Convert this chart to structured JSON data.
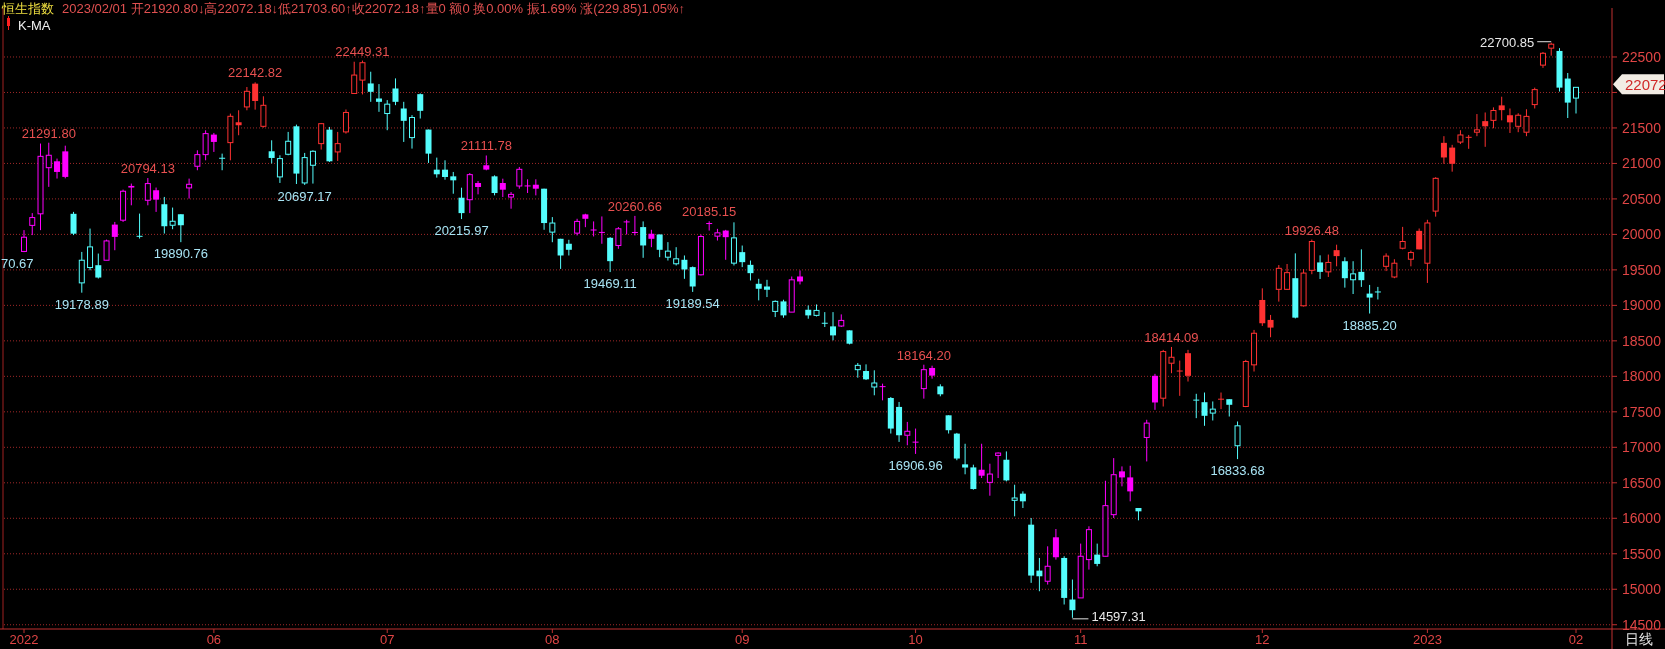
{
  "chart_data": {
    "type": "candlestick",
    "title": "恒生指数",
    "subtitle": "2023/02/01 开21920.80↓高22072.18↓低21703.60↑收22072.18↑量0 额0 换0.00% 振1.69% 涨(229.85)1.05%↑",
    "categories": [
      "2022",
      null,
      null,
      null,
      null,
      null,
      null,
      null,
      null,
      null,
      null,
      null,
      null,
      null,
      null,
      null,
      null,
      null,
      null,
      null,
      null,
      null,
      null,
      "06",
      null,
      null,
      null,
      null,
      null,
      null,
      null,
      null,
      null,
      null,
      null,
      null,
      null,
      null,
      null,
      null,
      null,
      null,
      null,
      null,
      "07",
      null,
      null,
      null,
      null,
      null,
      null,
      null,
      null,
      null,
      null,
      null,
      null,
      null,
      null,
      null,
      null,
      null,
      null,
      null,
      "08",
      null,
      null,
      null,
      null,
      null,
      null,
      null,
      null,
      null,
      null,
      null,
      null,
      null,
      null,
      null,
      null,
      null,
      null,
      null,
      null,
      null,
      null,
      "09",
      null,
      null,
      null,
      null,
      null,
      null,
      null,
      null,
      null,
      null,
      null,
      null,
      null,
      null,
      null,
      null,
      null,
      null,
      null,
      null,
      "10",
      null,
      null,
      null,
      null,
      null,
      null,
      null,
      null,
      null,
      null,
      null,
      null,
      null,
      null,
      null,
      null,
      null,
      null,
      null,
      "11",
      null,
      null,
      null,
      null,
      null,
      null,
      null,
      null,
      null,
      null,
      null,
      null,
      null,
      null,
      null,
      null,
      null,
      null,
      null,
      null,
      null,
      "12",
      null,
      null,
      null,
      null,
      null,
      null,
      null,
      null,
      null,
      null,
      null,
      null,
      null,
      null,
      null,
      null,
      null,
      null,
      null,
      "2023",
      null,
      null,
      null,
      null,
      null,
      null,
      null,
      null,
      null,
      null,
      null,
      null,
      null,
      null,
      null,
      null,
      null,
      "02"
    ],
    "ohlc": [
      [
        19760,
        20060,
        19750,
        19960
      ],
      [
        20127,
        20300,
        19990,
        20237
      ],
      [
        20290,
        21280,
        20060,
        21100
      ],
      [
        20940,
        21291.8,
        20670,
        21115
      ],
      [
        21030,
        21068,
        20787,
        20880
      ],
      [
        21170,
        21250,
        20790,
        20810
      ],
      [
        20290,
        20317,
        19990,
        20010
      ],
      [
        19317,
        19753,
        19178.89,
        19636
      ],
      [
        19533,
        20082,
        19495,
        19824
      ],
      [
        19566,
        19730,
        19378,
        19392
      ],
      [
        19636,
        19927,
        19636,
        19908
      ],
      [
        20138,
        20176,
        19777,
        19965
      ],
      [
        20200,
        20631,
        20176,
        20608
      ],
      [
        20683,
        20716,
        20410,
        20660
      ],
      [
        19980,
        20293,
        19941,
        19975
      ],
      [
        20481,
        20794.13,
        20410,
        20716
      ],
      [
        20622,
        20660,
        20317,
        20490
      ],
      [
        20425,
        20528,
        20012,
        20115
      ],
      [
        20129,
        20378,
        20073,
        20185
      ],
      [
        20284,
        20284,
        19890.76,
        20129
      ],
      [
        20655,
        20786,
        20505,
        20706
      ],
      [
        20960,
        21185,
        20904,
        21124
      ],
      [
        21124,
        21467,
        21044,
        21420
      ],
      [
        21406,
        21430,
        21162,
        21303
      ],
      [
        21080,
        21138,
        20904,
        21077
      ],
      [
        21293,
        21702,
        21044,
        21664
      ],
      [
        21580,
        21749,
        21397,
        21538
      ],
      [
        21796,
        22077,
        21749,
        22016
      ],
      [
        22124,
        22142.82,
        21758,
        21880
      ],
      [
        21523,
        21946,
        21505,
        21819
      ],
      [
        21171,
        21326,
        21000,
        21077
      ],
      [
        20810,
        21115,
        20725,
        21068
      ],
      [
        21129,
        21444,
        21115,
        21312
      ],
      [
        21523,
        21547,
        20710,
        20857
      ],
      [
        20725,
        21148,
        20697.17,
        21082
      ],
      [
        20974,
        21185,
        20716,
        21171
      ],
      [
        21279,
        21570,
        21195,
        21560
      ],
      [
        21476,
        21514,
        21021,
        21030
      ],
      [
        21162,
        21444,
        21035,
        21279
      ],
      [
        21444,
        21760,
        21420,
        21718
      ],
      [
        21986,
        22433,
        21986,
        22245
      ],
      [
        22174,
        22449.31,
        21972,
        22419
      ],
      [
        22127,
        22292,
        21868,
        22009
      ],
      [
        21915,
        22118,
        21727,
        21868
      ],
      [
        21703,
        21892,
        21468,
        21835
      ],
      [
        22056,
        22198,
        21821,
        21868
      ],
      [
        21774,
        21868,
        21303,
        21600
      ],
      [
        21364,
        21680,
        21209,
        21647
      ],
      [
        21976,
        21986,
        21633,
        21741
      ],
      [
        21477,
        21477,
        21007,
        21138
      ],
      [
        20912,
        21082,
        20800,
        20847
      ],
      [
        20912,
        21044,
        20771,
        20809
      ],
      [
        20818,
        20880,
        20573,
        20762
      ],
      [
        20517,
        20658,
        20215.97,
        20300
      ],
      [
        20489,
        20865,
        20300,
        20842
      ],
      [
        20724,
        20752,
        20564,
        20668
      ],
      [
        20974,
        21111.78,
        20903,
        20913
      ],
      [
        20818,
        20832,
        20550,
        20583
      ],
      [
        20724,
        20785,
        20526,
        20630
      ],
      [
        20526,
        20597,
        20362,
        20564
      ],
      [
        20682,
        20950,
        20644,
        20917
      ],
      [
        20690,
        20776,
        20583,
        20686
      ],
      [
        20700,
        20776,
        20550,
        20644
      ],
      [
        20644,
        20644,
        20065,
        20160
      ],
      [
        20032,
        20244,
        19890,
        20160
      ],
      [
        19938,
        19938,
        19514,
        19703
      ],
      [
        19868,
        19924,
        19703,
        19783
      ],
      [
        20018,
        20220,
        19985,
        20183
      ],
      [
        20282,
        20291,
        20102,
        20220
      ],
      [
        20069,
        20183,
        19971,
        20065
      ],
      [
        20035,
        20253,
        19868,
        20032
      ],
      [
        19952,
        19962,
        19469.11,
        19623
      ],
      [
        19844,
        20103,
        19797,
        20079
      ],
      [
        20183,
        20206,
        19999,
        20180
      ],
      [
        20034,
        20260.66,
        19985,
        20032
      ],
      [
        20103,
        20183,
        19670,
        19844
      ],
      [
        20009,
        20065,
        19820,
        19938
      ],
      [
        19999,
        19999,
        19679,
        19783
      ],
      [
        19679,
        19891,
        19632,
        19764
      ],
      [
        19586,
        19820,
        19562,
        19656
      ],
      [
        19642,
        19703,
        19374,
        19506
      ],
      [
        19539,
        19548,
        19189.54,
        19266
      ],
      [
        19431,
        19998,
        19421,
        19970
      ],
      [
        20160,
        20185.15,
        20054,
        20155
      ],
      [
        19975,
        20078,
        19914,
        20022
      ],
      [
        20054,
        20064,
        19642,
        19961
      ],
      [
        19595,
        20170,
        19562,
        19951
      ],
      [
        19750,
        19843,
        19539,
        19609
      ],
      [
        19571,
        19632,
        19351,
        19454
      ],
      [
        19304,
        19374,
        19070,
        19234
      ],
      [
        19266,
        19360,
        19117,
        19220
      ],
      [
        18915,
        19070,
        18835,
        19056
      ],
      [
        19056,
        19079,
        18826,
        18859
      ],
      [
        18905,
        19407,
        18905,
        19360
      ],
      [
        19407,
        19492,
        19295,
        19337
      ],
      [
        18938,
        18999,
        18812,
        18859
      ],
      [
        18859,
        19013,
        18844,
        18929
      ],
      [
        18755,
        18905,
        18695,
        18750
      ],
      [
        18704,
        18905,
        18507,
        18577
      ],
      [
        18709,
        18873,
        18695,
        18788
      ],
      [
        18648,
        18648,
        18450,
        18460
      ],
      [
        18094,
        18188,
        17981,
        18155
      ],
      [
        18075,
        18169,
        17948,
        17958
      ],
      [
        17850,
        18085,
        17733,
        17906
      ],
      [
        17862,
        17897,
        17662,
        17859
      ],
      [
        17695,
        17709,
        17194,
        17264
      ],
      [
        17569,
        17639,
        17076,
        17170
      ],
      [
        17170,
        17358,
        17029,
        17226
      ],
      [
        17080,
        17264,
        16906.96,
        17076
      ],
      [
        17827,
        18164.2,
        17686,
        18094
      ],
      [
        18118,
        18150,
        17967,
        18010
      ],
      [
        17859,
        17888,
        17719,
        17747
      ],
      [
        17451,
        17451,
        17194,
        17241
      ],
      [
        17193,
        17203,
        16818,
        16842
      ],
      [
        16760,
        17050,
        16620,
        16715
      ],
      [
        16717,
        16755,
        16403,
        16412
      ],
      [
        16684,
        17050,
        16567,
        16600
      ],
      [
        16506,
        16769,
        16318,
        16623
      ],
      [
        16886,
        16928,
        16567,
        16919
      ],
      [
        16825,
        16942,
        16520,
        16534
      ],
      [
        16253,
        16473,
        16028,
        16286
      ],
      [
        16347,
        16379,
        16145,
        16239
      ],
      [
        15910,
        16004,
        15090,
        15193
      ],
      [
        15263,
        15441,
        14972,
        15183
      ],
      [
        15113,
        15605,
        15066,
        15324
      ],
      [
        15732,
        15849,
        15418,
        15451
      ],
      [
        15441,
        15465,
        14785,
        14878
      ],
      [
        14855,
        15137,
        14597.31,
        14705
      ],
      [
        14878,
        15643,
        14878,
        15465
      ],
      [
        15418,
        15887,
        15277,
        15840
      ],
      [
        15488,
        15643,
        15324,
        15357
      ],
      [
        15465,
        16529,
        15465,
        16178
      ],
      [
        16051,
        16848,
        16004,
        16614
      ],
      [
        16661,
        16731,
        16450,
        16576
      ],
      [
        16576,
        16740,
        16239,
        16379
      ],
      [
        16145,
        16145,
        15971,
        16098
      ],
      [
        17139,
        17388,
        16801,
        17341
      ],
      [
        18007,
        18035,
        17528,
        17632
      ],
      [
        17692,
        18373,
        17575,
        18349
      ],
      [
        18185,
        18414.09,
        18044,
        18269
      ],
      [
        18082,
        18222,
        17725,
        18077
      ],
      [
        18326,
        18373,
        17927,
        18007
      ],
      [
        17672,
        17754,
        17411,
        17669
      ],
      [
        17636,
        17772,
        17303,
        17444
      ],
      [
        17482,
        17646,
        17378,
        17538
      ],
      [
        17685,
        17772,
        17538,
        17683
      ],
      [
        17678,
        17678,
        17434,
        17599
      ],
      [
        17022,
        17364,
        16833.68,
        17303
      ],
      [
        17575,
        18232,
        17566,
        18209
      ],
      [
        18162,
        18654,
        18068,
        18607
      ],
      [
        19076,
        19240,
        18710,
        18748
      ],
      [
        18795,
        18865,
        18551,
        18687
      ],
      [
        19226,
        19568,
        19053,
        19522
      ],
      [
        19226,
        19583,
        19217,
        19461
      ],
      [
        19383,
        19733,
        18816,
        18827
      ],
      [
        18994,
        19511,
        18983,
        19455
      ],
      [
        19494,
        19926.48,
        19439,
        19900
      ],
      [
        19605,
        19705,
        19372,
        19472
      ],
      [
        19472,
        19716,
        19400,
        19605
      ],
      [
        19778,
        19855,
        19550,
        19694
      ],
      [
        19622,
        19677,
        19250,
        19383
      ],
      [
        19361,
        19622,
        19160,
        19444
      ],
      [
        19472,
        19789,
        19260,
        19355
      ],
      [
        19166,
        19288,
        18885.2,
        19110
      ],
      [
        19196,
        19260,
        19083,
        19193
      ],
      [
        19550,
        19733,
        19483,
        19694
      ],
      [
        19400,
        19650,
        19383,
        19594
      ],
      [
        19805,
        20106,
        19789,
        19900
      ],
      [
        19650,
        19772,
        19550,
        19744
      ],
      [
        20050,
        20083,
        19789,
        19789
      ],
      [
        19594,
        20206,
        19316,
        20161
      ],
      [
        20328,
        20806,
        20250,
        20790
      ],
      [
        21290,
        21384,
        20995,
        21084
      ],
      [
        21223,
        21262,
        20884,
        20995
      ],
      [
        21301,
        21468,
        21273,
        21401
      ],
      [
        21375,
        21401,
        21206,
        21373
      ],
      [
        21440,
        21696,
        21384,
        21473
      ],
      [
        21596,
        21718,
        21234,
        21523
      ],
      [
        21607,
        21790,
        21496,
        21746
      ],
      [
        21818,
        21940,
        21607,
        21751
      ],
      [
        21679,
        21774,
        21429,
        21579
      ],
      [
        21523,
        21707,
        21440,
        21679
      ],
      [
        21440,
        21763,
        21384,
        21663
      ],
      [
        21829,
        22068,
        21774,
        22040
      ],
      [
        22385,
        22570,
        22346,
        22552
      ],
      [
        22624,
        22700.85,
        22518,
        22680
      ],
      [
        22585,
        22624,
        22013,
        22068
      ],
      [
        22196,
        22274,
        21640,
        21857
      ],
      [
        21920.8,
        22072.18,
        21703.6,
        22072.18
      ]
    ],
    "colors": [
      "#ff00ff",
      "#ff00ff",
      "#ff00ff",
      "#ff00ff",
      "#ff00ff",
      "#ff00ff",
      "#54fcfc",
      "#54fcfc",
      "#54fcfc",
      "#54fcfc",
      "#ff00ff",
      "#ff00ff",
      "#ff00ff",
      "#ff00ff",
      "#54fcfc",
      "#ff00ff",
      "#ff00ff",
      "#54fcfc",
      "#54fcfc",
      "#54fcfc",
      "#ff00ff",
      "#ff00ff",
      "#ff00ff",
      "#ff00ff",
      "#54fcfc",
      "#ff3232",
      "#ff3232",
      "#ff3232",
      "#ff3232",
      "#ff3232",
      "#54fcfc",
      "#54fcfc",
      "#54fcfc",
      "#54fcfc",
      "#54fcfc",
      "#54fcfc",
      "#ff3232",
      "#54fcfc",
      "#ff3232",
      "#ff3232",
      "#ff3232",
      "#ff3232",
      "#54fcfc",
      "#54fcfc",
      "#54fcfc",
      "#54fcfc",
      "#54fcfc",
      "#54fcfc",
      "#54fcfc",
      "#54fcfc",
      "#54fcfc",
      "#54fcfc",
      "#54fcfc",
      "#54fcfc",
      "#ff00ff",
      "#ff00ff",
      "#ff00ff",
      "#54fcfc",
      "#ff00ff",
      "#ff00ff",
      "#ff00ff",
      "#ff00ff",
      "#ff00ff",
      "#54fcfc",
      "#54fcfc",
      "#54fcfc",
      "#54fcfc",
      "#ff00ff",
      "#ff00ff",
      "#ff00ff",
      "#ff00ff",
      "#54fcfc",
      "#ff00ff",
      "#ff00ff",
      "#ff00ff",
      "#54fcfc",
      "#ff00ff",
      "#54fcfc",
      "#54fcfc",
      "#54fcfc",
      "#54fcfc",
      "#54fcfc",
      "#ff00ff",
      "#ff00ff",
      "#ff00ff",
      "#ff00ff",
      "#54fcfc",
      "#54fcfc",
      "#54fcfc",
      "#54fcfc",
      "#54fcfc",
      "#54fcfc",
      "#54fcfc",
      "#ff00ff",
      "#ff00ff",
      "#54fcfc",
      "#54fcfc",
      "#54fcfc",
      "#54fcfc",
      "#ff00ff",
      "#54fcfc",
      "#54fcfc",
      "#54fcfc",
      "#54fcfc",
      "#ff00ff",
      "#54fcfc",
      "#54fcfc",
      "#ff00ff",
      "#ff00ff",
      "#ff00ff",
      "#ff00ff",
      "#54fcfc",
      "#54fcfc",
      "#54fcfc",
      "#54fcfc",
      "#54fcfc",
      "#ff00ff",
      "#ff00ff",
      "#ff00ff",
      "#54fcfc",
      "#54fcfc",
      "#54fcfc",
      "#54fcfc",
      "#54fcfc",
      "#ff00ff",
      "#ff00ff",
      "#54fcfc",
      "#54fcfc",
      "#ff00ff",
      "#ff00ff",
      "#54fcfc",
      "#ff00ff",
      "#ff00ff",
      "#ff00ff",
      "#ff00ff",
      "#54fcfc",
      "#ff00ff",
      "#ff00ff",
      "#ff3232",
      "#ff3232",
      "#ff3232",
      "#ff3232",
      "#54fcfc",
      "#54fcfc",
      "#54fcfc",
      "#ff3232",
      "#54fcfc",
      "#54fcfc",
      "#ff3232",
      "#ff3232",
      "#ff3232",
      "#ff3232",
      "#ff3232",
      "#ff3232",
      "#54fcfc",
      "#ff3232",
      "#ff3232",
      "#54fcfc",
      "#ff3232",
      "#ff3232",
      "#54fcfc",
      "#54fcfc",
      "#54fcfc",
      "#54fcfc",
      "#54fcfc",
      "#ff3232",
      "#ff3232",
      "#ff3232",
      "#ff3232",
      "#ff3232",
      "#ff3232",
      "#ff3232",
      "#ff3232",
      "#ff3232",
      "#ff3232",
      "#ff3232",
      "#ff3232",
      "#ff3232",
      "#ff3232",
      "#ff3232",
      "#ff3232",
      "#ff3232",
      "#ff3232",
      "#ff3232",
      "#ff3232",
      "#ff3232",
      "#54fcfc",
      "#54fcfc",
      "#54fcfc"
    ],
    "ylim": [
      14440,
      23190
    ],
    "yticks": [
      14500,
      15000,
      15500,
      16000,
      16500,
      17000,
      17500,
      18000,
      18500,
      19000,
      19500,
      20000,
      20500,
      21000,
      21500,
      {
        "value": 22000,
        "label": null
      },
      22500
    ],
    "grid": "y",
    "annotations": [
      "K-MA",
      "日线",
      "70.67",
      "22072",
      "22700.85",
      "14597.31",
      {
        "text": "21291.80",
        "y": 21291.8
      },
      {
        "text": "19178.89",
        "y": 19178.89
      },
      {
        "text": "20794.13",
        "y": 20794.13
      },
      {
        "text": "19890.76",
        "y": 19890.76
      },
      {
        "text": "22142.82",
        "y": 22142.82
      },
      {
        "text": "20697.17",
        "y": 20697.17
      },
      {
        "text": "22449.31",
        "y": 22449.31
      },
      {
        "text": "20215.97",
        "y": 20215.97
      },
      {
        "text": "21111.78",
        "y": 21111.78
      },
      {
        "text": "19469.11",
        "y": 19469.11
      },
      {
        "text": "20260.66",
        "y": 20260.66
      },
      {
        "text": "19189.54",
        "y": 19189.54
      },
      {
        "text": "20185.15",
        "y": 20185.15
      },
      {
        "text": "16906.96",
        "y": 16906.96
      },
      {
        "text": "18164.20",
        "y": 18164.2
      },
      {
        "text": "18414.09",
        "y": 18414.09
      },
      {
        "text": "16833.68",
        "y": 16833.68
      },
      {
        "text": "19926.48",
        "y": 19926.48
      },
      {
        "text": "18885.20",
        "y": 18885.2
      }
    ]
  }
}
